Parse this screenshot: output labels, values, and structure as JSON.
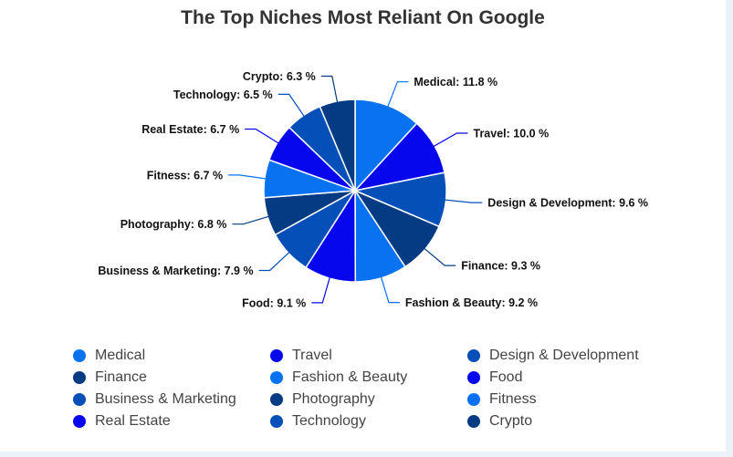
{
  "page": {
    "title": "The Top Niches Most Reliant On Google"
  },
  "chart_data": {
    "type": "pie",
    "title": "The Top Niches Most Reliant On Google",
    "unit": "%",
    "slices": [
      {
        "name": "Medical",
        "value": 11.8,
        "label": "Medical: 11.8 %",
        "color": "#0872f0"
      },
      {
        "name": "Travel",
        "value": 10.0,
        "label": "Travel: 10.0 %",
        "color": "#0707ee"
      },
      {
        "name": "Design & Development",
        "value": 9.6,
        "label": "Design & Development: 9.6 %",
        "color": "#0550b8"
      },
      {
        "name": "Finance",
        "value": 9.3,
        "label": "Finance: 9.3 %",
        "color": "#053b82"
      },
      {
        "name": "Fashion & Beauty",
        "value": 9.2,
        "label": "Fashion & Beauty: 9.2 %",
        "color": "#0872f0"
      },
      {
        "name": "Food",
        "value": 9.1,
        "label": "Food: 9.1 %",
        "color": "#0707ee"
      },
      {
        "name": "Business & Marketing",
        "value": 7.9,
        "label": "Business & Marketing: 7.9 %",
        "color": "#0550b8"
      },
      {
        "name": "Photography",
        "value": 6.8,
        "label": "Photography: 6.8 %",
        "color": "#053b82"
      },
      {
        "name": "Fitness",
        "value": 6.7,
        "label": "Fitness: 6.7 %",
        "color": "#0872f0"
      },
      {
        "name": "Real Estate",
        "value": 6.7,
        "label": "Real Estate: 6.7 %",
        "color": "#0707ee"
      },
      {
        "name": "Technology",
        "value": 6.5,
        "label": "Technology: 6.5 %",
        "color": "#0550b8"
      },
      {
        "name": "Crypto",
        "value": 6.3,
        "label": "Crypto: 6.3 %",
        "color": "#053b82"
      }
    ],
    "legend": {
      "position": "bottom",
      "columns": 3,
      "items": [
        "Medical",
        "Travel",
        "Design & Development",
        "Finance",
        "Fashion & Beauty",
        "Food",
        "Business & Marketing",
        "Photography",
        "Fitness",
        "Real Estate",
        "Technology",
        "Crypto"
      ]
    }
  }
}
